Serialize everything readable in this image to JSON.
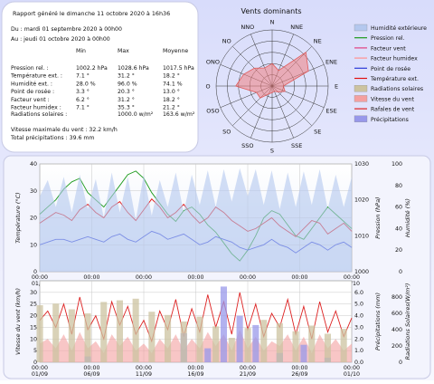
{
  "report": {
    "title": "Rapport généré le dimanche 11 octobre 2020 à 16h36",
    "period_from": "Du : mardi 01 septembre 2020 à 00h00",
    "period_to": "Au : jeudi 01 octobre 2020 à 00h00",
    "col_min": "Min",
    "col_max": "Max",
    "col_avg": "Moyenne",
    "rows": [
      {
        "label": "Pression rel. :",
        "min": "1002.2 hPa",
        "max": "1028.6 hPa",
        "avg": "1017.5 hPa"
      },
      {
        "label": "Température ext. :",
        "min": "7.1 °",
        "max": "31.2 °",
        "avg": "18.2 °"
      },
      {
        "label": "Humidité ext. :",
        "min": "28.0 %",
        "max": "96.0 %",
        "avg": "74.1 %"
      },
      {
        "label": "Point de rosée :",
        "min": "3.3 °",
        "max": "20.3 °",
        "avg": "13.0 °"
      },
      {
        "label": "Facteur vent :",
        "min": "6.2 °",
        "max": "31.2 °",
        "avg": "18.2 °"
      },
      {
        "label": "Facteur humidex :",
        "min": "7.1 °",
        "max": "35.3 °",
        "avg": "21.2 °"
      }
    ],
    "solar_label": "Radiations solaires :",
    "solar_max": "1000.0 w/m²",
    "solar_avg": "163.6 w/m²",
    "wind_max": "Vitesse maximale du vent : 32.2 km/h",
    "precip_total": "Total précipitations : 39.6 mm"
  },
  "wind_rose": {
    "title": "Vents dominants",
    "directions": [
      "N",
      "NNE",
      "NE",
      "ENE",
      "E",
      "ESE",
      "SE",
      "SSE",
      "S",
      "SSO",
      "SO",
      "OSO",
      "O",
      "ONO",
      "NO",
      "NNO"
    ],
    "frequencies": [
      0.4,
      0.3,
      0.85,
      0.7,
      0.2,
      0.25,
      0.15,
      0.1,
      0.12,
      0.15,
      0.3,
      0.3,
      0.65,
      0.55,
      0.45,
      0.35
    ]
  },
  "legend": {
    "items": [
      {
        "label": "Humidité extérieure",
        "color": "#b4c8ee",
        "kind": "box"
      },
      {
        "label": "Pression rel.",
        "color": "#1a9a1a",
        "kind": "line"
      },
      {
        "label": "Facteur vent",
        "color": "#e04080",
        "kind": "line"
      },
      {
        "label": "Facteur humidex",
        "color": "#ff9090",
        "kind": "line"
      },
      {
        "label": "Point de rosée",
        "color": "#2a3ad8",
        "kind": "line"
      },
      {
        "label": "Température ext.",
        "color": "#e01010",
        "kind": "line"
      },
      {
        "label": "Radiations solaires",
        "color": "#ccc3a0",
        "kind": "box"
      },
      {
        "label": "Vitesse du vent",
        "color": "#f4a0a0",
        "kind": "box"
      },
      {
        "label": "Rafales de vent",
        "color": "#dd2222",
        "kind": "line"
      },
      {
        "label": "Précipitations",
        "color": "#9898ea",
        "kind": "box"
      }
    ]
  },
  "chart_data": [
    {
      "type": "line",
      "x_ticks": [
        "00:00\n01/09",
        "00:00\n06/09",
        "00:00\n11/09",
        "00:00\n16/09",
        "00:00\n21/09",
        "00:00\n26/09",
        "00:00\n01/10"
      ],
      "ylabel_left": "Température (°C)",
      "ylabel_right": "Pression (hPa)",
      "ylabel_right2": "Humidité (%)",
      "ylim_left": [
        0,
        40
      ],
      "ylim_right": [
        1000,
        1030
      ],
      "ylim_right2": [
        0,
        100
      ],
      "left_ticks": [
        "0",
        "10",
        "20",
        "30",
        "40"
      ],
      "right_ticks": [
        "1000",
        "1010",
        "1020",
        "1030"
      ],
      "right2_ticks": [
        "0",
        "20",
        "40",
        "60",
        "80",
        "100"
      ],
      "series": [
        {
          "name": "Pression rel.",
          "axis": "right",
          "color": "#1a9a1a",
          "values": [
            1016,
            1018,
            1020,
            1023,
            1025,
            1026,
            1022,
            1020,
            1018,
            1021,
            1024,
            1027,
            1028,
            1026,
            1022,
            1019,
            1016,
            1014,
            1017,
            1018,
            1016,
            1013,
            1011,
            1008,
            1005,
            1003,
            1006,
            1010,
            1015,
            1017,
            1016,
            1013,
            1010,
            1009,
            1012,
            1015,
            1018,
            1016,
            1014,
            1012
          ]
        },
        {
          "name": "Température ext.",
          "axis": "left",
          "color": "#e01010",
          "values": [
            18,
            20,
            22,
            21,
            19,
            23,
            25,
            22,
            20,
            24,
            26,
            22,
            19,
            23,
            27,
            24,
            20,
            22,
            25,
            21,
            18,
            20,
            24,
            22,
            19,
            17,
            15,
            16,
            18,
            20,
            17,
            15,
            13,
            16,
            19,
            18,
            14,
            16,
            18,
            15
          ]
        },
        {
          "name": "Point de rosée",
          "axis": "left",
          "color": "#2a3ad8",
          "values": [
            10,
            11,
            12,
            12,
            11,
            12,
            13,
            12,
            11,
            13,
            14,
            12,
            11,
            13,
            15,
            14,
            12,
            13,
            14,
            12,
            10,
            11,
            13,
            12,
            11,
            9,
            8,
            9,
            10,
            12,
            10,
            9,
            7,
            9,
            11,
            10,
            8,
            10,
            11,
            9
          ]
        },
        {
          "name": "Humidité extérieure",
          "axis": "right2",
          "color": "#b4c8ee",
          "values": [
            70,
            85,
            60,
            88,
            55,
            90,
            58,
            86,
            50,
            92,
            55,
            88,
            48,
            90,
            52,
            85,
            60,
            92,
            55,
            90,
            62,
            94,
            60,
            95,
            65,
            96,
            70,
            95,
            62,
            94,
            58,
            92,
            60,
            93,
            62,
            95,
            58,
            90,
            60,
            88
          ]
        }
      ]
    },
    {
      "type": "bar",
      "x_ticks": [
        "00:00\n01/09",
        "00:00\n06/09",
        "00:00\n11/09",
        "00:00\n16/09",
        "00:00\n21/09",
        "00:00\n26/09",
        "00:00\n01/10"
      ],
      "ylabel_left": "Vitesse du vent (km/h)",
      "ylabel_right": "Précipitations (mm)",
      "ylabel_right2": "Radiations Solaires(W/m²)",
      "ylim_left": [
        0,
        35
      ],
      "ylim_right": [
        0,
        7
      ],
      "ylim_right2": [
        0,
        1000
      ],
      "left_ticks": [
        "0",
        "5",
        "10",
        "15",
        "20",
        "25",
        "30"
      ],
      "right_ticks": [
        "0.0",
        "1.0",
        "2.0",
        "3.0",
        "4.0",
        "5.0",
        "6.0"
      ],
      "right2_ticks": [
        "0",
        "200",
        "400",
        "600",
        "800"
      ],
      "series": [
        {
          "name": "Rafales de vent",
          "axis": "left",
          "color": "#dd2222",
          "values": [
            18,
            22,
            15,
            25,
            12,
            28,
            14,
            20,
            10,
            26,
            16,
            24,
            12,
            18,
            9,
            22,
            14,
            27,
            11,
            23,
            13,
            29,
            15,
            26,
            12,
            30,
            14,
            25,
            11,
            21,
            15,
            27,
            12,
            24,
            10,
            26,
            13,
            22,
            11,
            19
          ]
        },
        {
          "name": "Vitesse du vent",
          "axis": "left",
          "color": "#f4a0a0",
          "values": [
            8,
            10,
            6,
            12,
            5,
            13,
            6,
            9,
            4,
            12,
            7,
            11,
            5,
            8,
            4,
            10,
            6,
            12,
            5,
            10,
            6,
            13,
            7,
            12,
            5,
            14,
            6,
            11,
            5,
            9,
            7,
            12,
            5,
            11,
            4,
            12,
            6,
            10,
            5,
            8
          ]
        },
        {
          "name": "Précipitations",
          "axis": "right",
          "color": "#9898ea",
          "values": [
            0,
            0,
            0,
            0,
            0,
            0,
            0.5,
            0,
            0,
            0,
            0,
            0,
            0,
            0,
            0,
            0,
            0,
            0,
            2.5,
            0,
            0,
            1.2,
            0,
            6.5,
            0,
            4.0,
            0,
            3.2,
            0,
            0,
            0.8,
            0,
            0,
            1.5,
            0,
            0,
            0.4,
            0,
            0,
            0
          ]
        },
        {
          "name": "Radiations solaires",
          "axis": "right2",
          "color": "#ccc3a0",
          "values": [
            700,
            0,
            720,
            0,
            650,
            0,
            600,
            0,
            740,
            0,
            760,
            0,
            780,
            0,
            620,
            0,
            580,
            0,
            500,
            0,
            560,
            0,
            440,
            0,
            300,
            0,
            420,
            0,
            520,
            0,
            480,
            0,
            380,
            0,
            450,
            0,
            350,
            0,
            410,
            0
          ]
        }
      ]
    }
  ]
}
